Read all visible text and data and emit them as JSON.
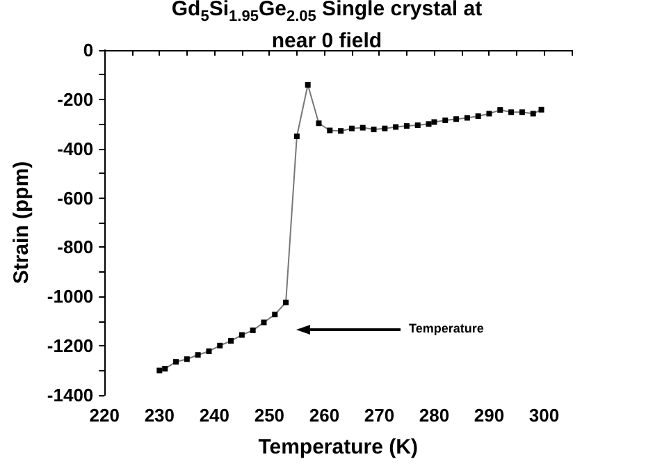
{
  "chart_data": {
    "type": "line",
    "title": "Gd$_{5}$Si$_{1.95}$Ge$_{2.05}$ Single crystal at near 0 field",
    "xlabel": "Temperature (K)",
    "ylabel": "Strain (ppm)",
    "x": [
      230,
      231,
      233,
      235,
      237,
      239,
      241,
      243,
      245,
      247,
      249,
      251,
      253,
      255,
      257,
      259,
      261,
      263,
      265,
      267,
      269,
      271,
      273,
      275,
      277,
      279,
      280,
      282,
      284,
      286,
      288,
      290,
      292,
      294,
      296,
      298,
      299.5
    ],
    "series": [
      {
        "color": "#000000",
        "values": [
          -1300,
          -1293,
          -1265,
          -1254,
          -1237,
          -1222,
          -1199,
          -1180,
          -1156,
          -1137,
          -1105,
          -1073,
          -1024,
          -350,
          -141,
          -297,
          -326,
          -328,
          -318,
          -315,
          -322,
          -318,
          -312,
          -308,
          -305,
          -300,
          -292,
          -285,
          -280,
          -275,
          -268,
          -258,
          -243,
          -252,
          -252,
          -258,
          -242
        ]
      }
    ],
    "xlim": [
      220,
      305
    ],
    "xticks": [
      220,
      230,
      240,
      250,
      260,
      270,
      280,
      290,
      300
    ],
    "ylim": [
      -1400,
      0
    ],
    "yticks": [
      -1400,
      -1200,
      -1000,
      -800,
      -600,
      -400,
      -200,
      0
    ],
    "annotations": [
      "Temperature"
    ],
    "grid": false,
    "marker": "square",
    "line_style": "solid"
  }
}
